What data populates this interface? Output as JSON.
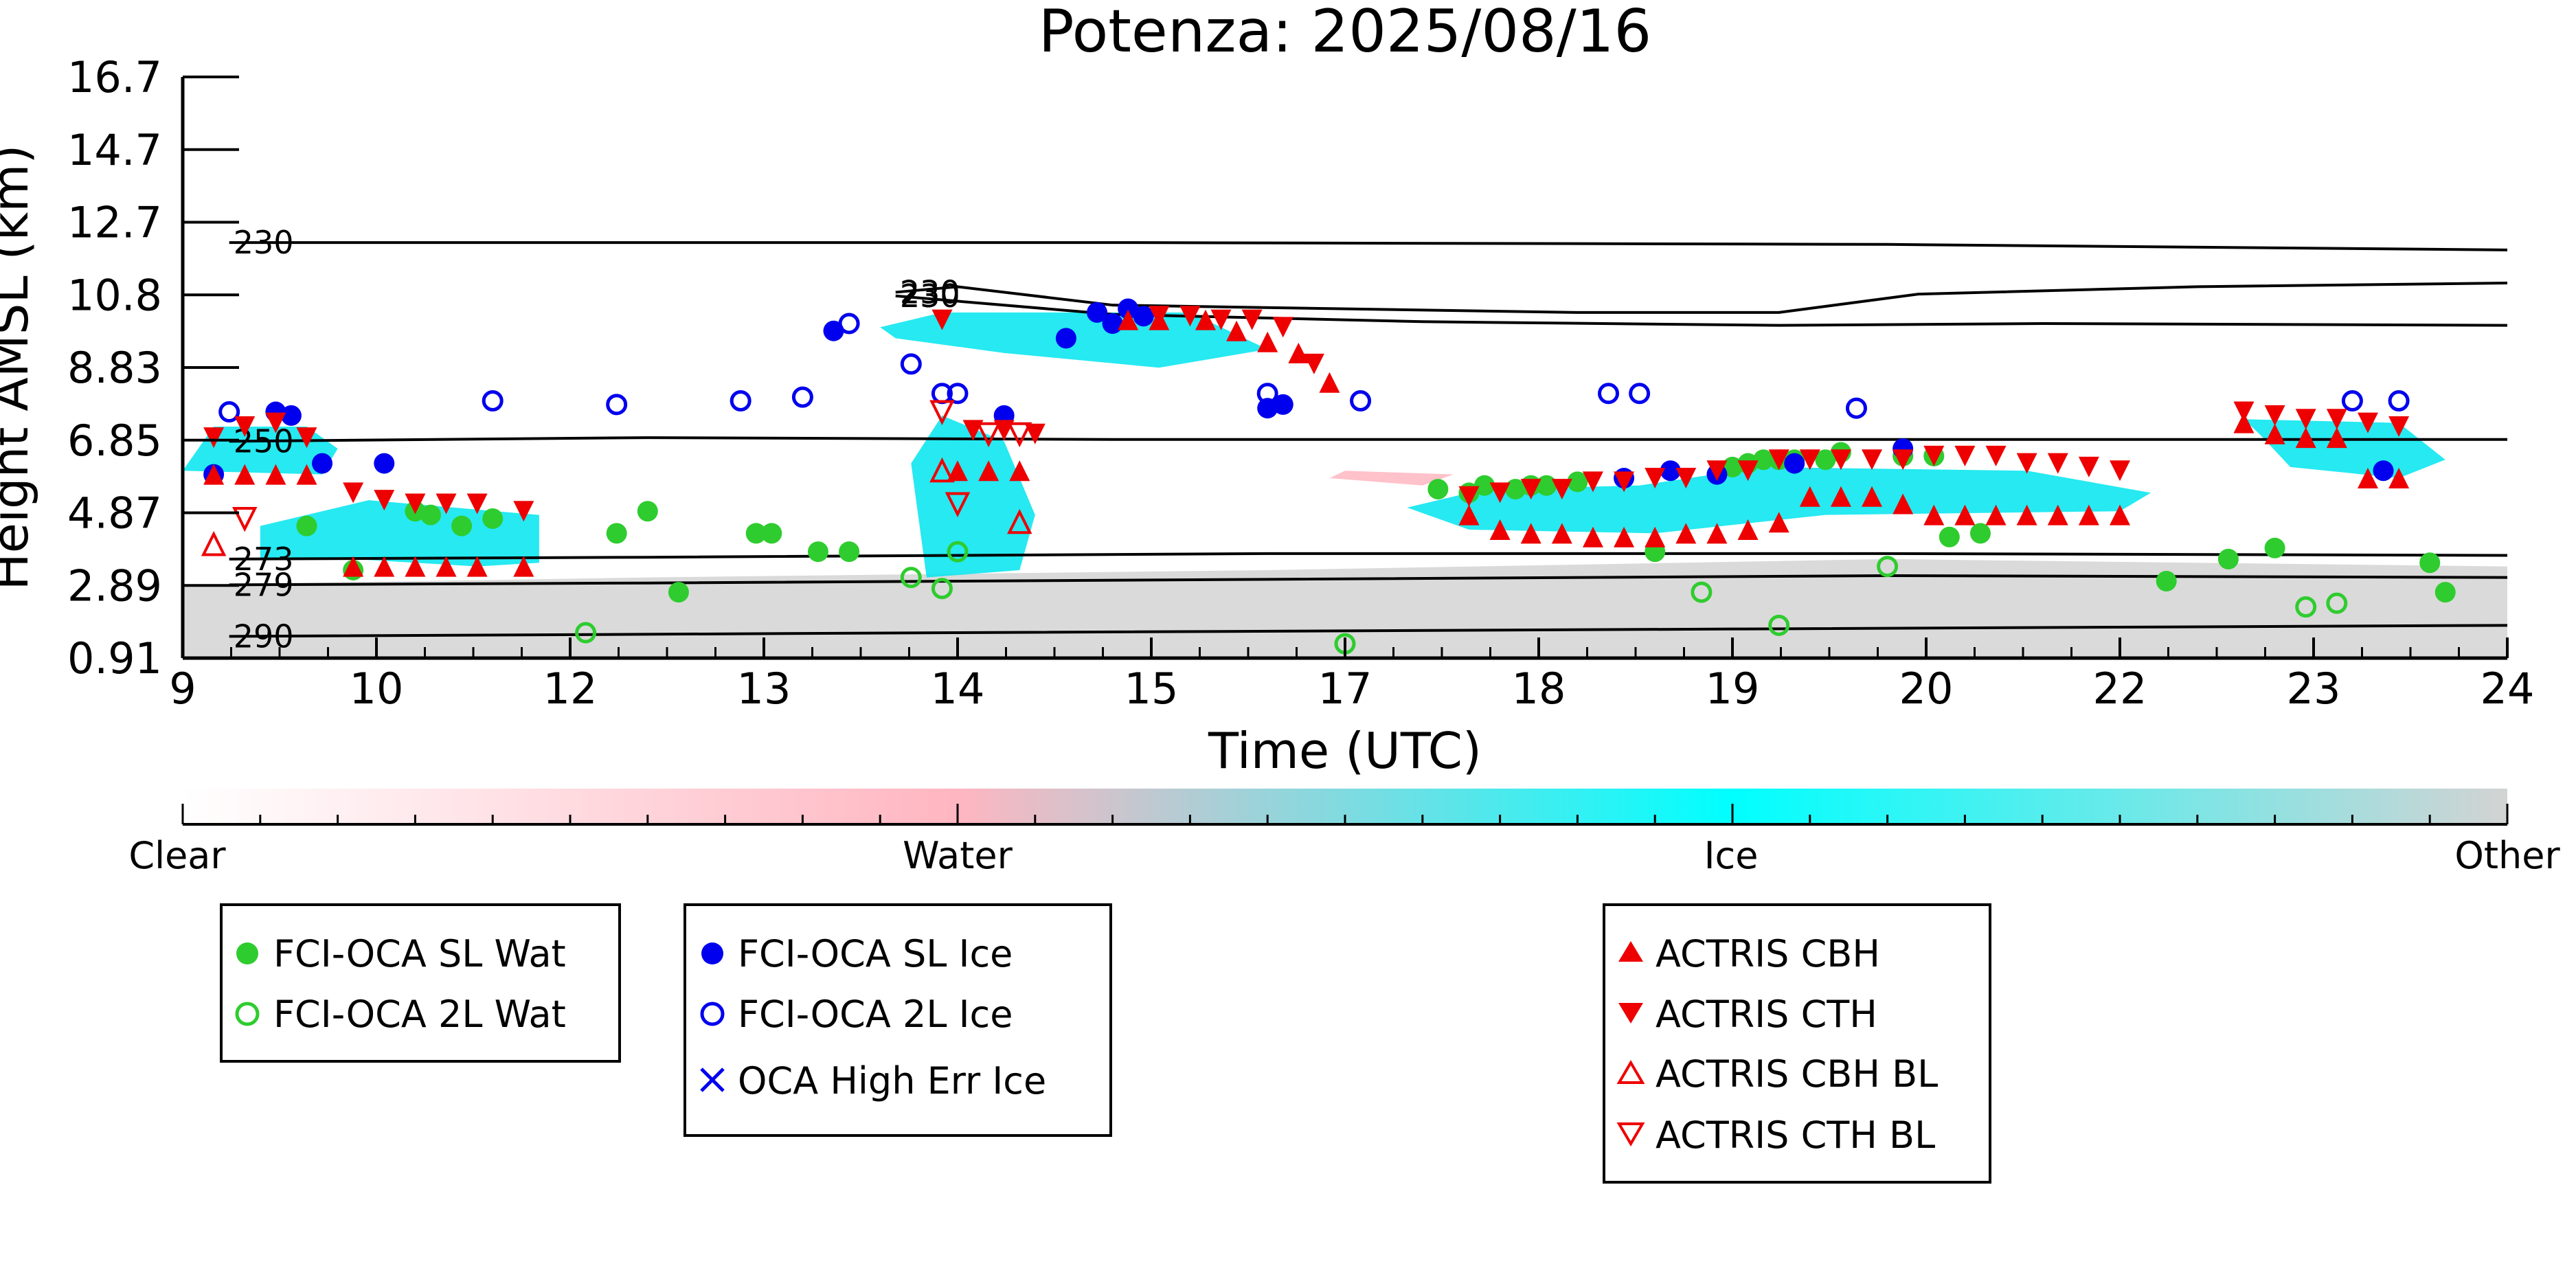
{
  "chart_data": {
    "type": "scatter",
    "title": "Potenza: 2025/08/16",
    "xlabel": "Time (UTC)",
    "ylabel": "Height AMSL (km)",
    "x_tick_labels": [
      "9",
      "10",
      "12",
      "13",
      "14",
      "15",
      "17",
      "18",
      "19",
      "20",
      "22",
      "23",
      "24"
    ],
    "y_tick_labels": [
      "16.7",
      "14.7",
      "12.7",
      "10.8",
      "8.83",
      "6.85",
      "4.87",
      "2.89",
      "0.91"
    ],
    "xlim": [
      9,
      24
    ],
    "ylim": [
      0.91,
      16.7
    ],
    "colorbar": {
      "labels": [
        "Clear",
        "Water",
        "Ice",
        "Other"
      ],
      "colors": [
        "#ffffff",
        "#ffb6c1",
        "#00ffff",
        "#d3d3d3"
      ]
    },
    "isotherms": [
      {
        "label": "230",
        "points": [
          [
            9.3,
            12.2
          ],
          [
            15,
            12.2
          ],
          [
            20,
            12.15
          ],
          [
            24,
            12.0
          ]
        ]
      },
      {
        "label": "230",
        "points": [
          [
            13.6,
            10.85
          ],
          [
            14.0,
            11.0
          ],
          [
            15,
            10.5
          ],
          [
            18,
            10.3
          ],
          [
            19.3,
            10.3
          ],
          [
            20.2,
            10.8
          ],
          [
            22,
            11.0
          ],
          [
            24,
            11.1
          ]
        ]
      },
      {
        "label": "230",
        "points": [
          [
            13.6,
            10.75
          ],
          [
            15,
            10.25
          ],
          [
            17,
            10.05
          ],
          [
            19.3,
            9.95
          ],
          [
            21,
            10.0
          ],
          [
            24,
            9.95
          ]
        ]
      },
      {
        "label": "250",
        "points": [
          [
            9.3,
            6.8
          ],
          [
            12,
            6.9
          ],
          [
            15,
            6.85
          ],
          [
            19,
            6.85
          ],
          [
            24,
            6.85
          ]
        ]
      },
      {
        "label": "273",
        "points": [
          [
            9.3,
            3.6
          ],
          [
            12,
            3.65
          ],
          [
            16,
            3.75
          ],
          [
            20,
            3.75
          ],
          [
            24,
            3.7
          ]
        ]
      },
      {
        "label": "279",
        "points": [
          [
            9.3,
            2.9
          ],
          [
            12,
            2.95
          ],
          [
            16,
            3.05
          ],
          [
            20,
            3.15
          ],
          [
            24,
            3.1
          ]
        ]
      },
      {
        "label": "290",
        "points": [
          [
            9.3,
            1.5
          ],
          [
            14,
            1.6
          ],
          [
            19,
            1.7
          ],
          [
            24,
            1.8
          ]
        ]
      }
    ],
    "series": [
      {
        "name": "FCI-OCA SL Wat",
        "color": "#2ecc2e",
        "marker": "circle-filled",
        "x": [
          9.8,
          10.1,
          10.5,
          10.6,
          10.8,
          11.0,
          11.8,
          12.0,
          12.2,
          12.7,
          12.8,
          13.1,
          13.3,
          17.1,
          17.3,
          17.4,
          17.6,
          17.7,
          17.8,
          18.0,
          18.5,
          19.0,
          19.1,
          19.2,
          19.3,
          19.4,
          19.6,
          19.7,
          20.1,
          20.3,
          20.4,
          20.6,
          21.8,
          22.2,
          22.5,
          23.5,
          23.6
        ],
        "y": [
          4.5,
          3.3,
          4.9,
          4.8,
          4.5,
          4.7,
          4.3,
          4.9,
          2.7,
          4.3,
          4.3,
          3.8,
          3.8,
          5.5,
          5.4,
          5.6,
          5.5,
          5.6,
          5.6,
          5.7,
          3.8,
          6.1,
          6.2,
          6.3,
          6.3,
          6.3,
          6.3,
          6.5,
          6.4,
          6.4,
          4.2,
          4.3,
          3.0,
          3.6,
          3.9,
          3.5,
          2.7
        ]
      },
      {
        "name": "FCI-OCA 2L Wat",
        "color": "#2ecc2e",
        "marker": "circle-open",
        "x": [
          11.6,
          13.7,
          13.9,
          14.0,
          16.5,
          18.8,
          19.3,
          20.0,
          22.7,
          22.9
        ],
        "y": [
          1.6,
          3.1,
          2.8,
          3.8,
          1.3,
          2.7,
          1.8,
          3.4,
          2.3,
          2.4
        ]
      },
      {
        "name": "FCI-OCA SL Ice",
        "color": "#0000ee",
        "marker": "circle-filled",
        "x": [
          9.2,
          9.6,
          9.7,
          9.9,
          10.3,
          13.2,
          14.3,
          14.7,
          14.9,
          15.0,
          15.1,
          15.2,
          16.0,
          16.1,
          18.3,
          18.6,
          18.9,
          19.4,
          20.1,
          23.2
        ],
        "y": [
          5.9,
          7.6,
          7.5,
          6.2,
          6.2,
          9.8,
          7.5,
          9.6,
          10.3,
          10.0,
          10.4,
          10.2,
          7.7,
          7.8,
          5.8,
          6.0,
          5.9,
          6.2,
          6.6,
          6.0
        ]
      },
      {
        "name": "FCI-OCA 2L Ice",
        "color": "#0000ee",
        "marker": "circle-open",
        "x": [
          9.3,
          11.0,
          11.8,
          12.6,
          13.0,
          13.3,
          13.7,
          13.9,
          14.0,
          16.0,
          16.6,
          18.2,
          18.4,
          19.8,
          23.0,
          23.3
        ],
        "y": [
          7.6,
          7.9,
          7.8,
          7.9,
          8.0,
          10.0,
          8.9,
          8.1,
          8.1,
          8.1,
          7.9,
          8.1,
          8.1,
          7.7,
          7.9,
          7.9
        ]
      },
      {
        "name": "OCA High Err Ice",
        "color": "#0000ee",
        "marker": "x",
        "x": [],
        "y": []
      },
      {
        "name": "ACTRIS CBH",
        "color": "#ee0000",
        "marker": "triangle-up-filled",
        "x": [
          9.2,
          9.4,
          9.6,
          9.8,
          10.1,
          10.3,
          10.5,
          10.7,
          10.9,
          11.2,
          14.0,
          14.2,
          14.4,
          15.1,
          15.3,
          15.6,
          15.8,
          16.0,
          16.2,
          16.4,
          17.3,
          17.5,
          17.7,
          17.9,
          18.1,
          18.3,
          18.5,
          18.7,
          18.9,
          19.1,
          19.3,
          19.5,
          19.7,
          19.9,
          20.1,
          20.3,
          20.5,
          20.7,
          20.9,
          21.1,
          21.3,
          21.5,
          22.3,
          22.5,
          22.7,
          22.9,
          23.1,
          23.3
        ],
        "y": [
          5.9,
          5.9,
          5.9,
          5.9,
          3.4,
          3.4,
          3.4,
          3.4,
          3.4,
          3.4,
          6.0,
          6.0,
          6.0,
          10.1,
          10.1,
          10.1,
          9.8,
          9.5,
          9.2,
          8.4,
          4.8,
          4.4,
          4.3,
          4.3,
          4.2,
          4.2,
          4.2,
          4.3,
          4.3,
          4.4,
          4.6,
          5.3,
          5.3,
          5.3,
          5.1,
          4.8,
          4.8,
          4.8,
          4.8,
          4.8,
          4.8,
          4.8,
          7.3,
          7.0,
          6.9,
          6.9,
          5.8,
          5.8
        ]
      },
      {
        "name": "ACTRIS CTH",
        "color": "#ee0000",
        "marker": "triangle-down-filled",
        "x": [
          9.2,
          9.4,
          9.6,
          9.8,
          10.1,
          10.3,
          10.5,
          10.7,
          10.9,
          11.2,
          13.9,
          14.1,
          14.3,
          14.5,
          15.3,
          15.5,
          15.7,
          15.9,
          16.1,
          16.3,
          17.3,
          17.5,
          17.7,
          17.9,
          18.1,
          18.3,
          18.5,
          18.7,
          18.9,
          19.1,
          19.3,
          19.5,
          19.7,
          19.9,
          20.1,
          20.3,
          20.5,
          20.7,
          20.9,
          21.1,
          21.3,
          21.5,
          22.3,
          22.5,
          22.7,
          22.9,
          23.1,
          23.3
        ],
        "y": [
          6.9,
          7.2,
          7.3,
          6.9,
          5.4,
          5.2,
          5.1,
          5.1,
          5.1,
          4.9,
          10.1,
          7.1,
          7.1,
          7.0,
          10.2,
          10.2,
          10.1,
          10.1,
          9.9,
          8.9,
          5.3,
          5.4,
          5.5,
          5.5,
          5.7,
          5.7,
          5.8,
          5.8,
          6.0,
          6.0,
          6.3,
          6.3,
          6.3,
          6.3,
          6.3,
          6.4,
          6.4,
          6.4,
          6.2,
          6.2,
          6.1,
          6.0,
          7.6,
          7.5,
          7.4,
          7.4,
          7.3,
          7.2
        ]
      },
      {
        "name": "ACTRIS CBH BL",
        "color": "#ee0000",
        "marker": "triangle-up-open",
        "x": [
          9.2,
          13.9,
          14.4
        ],
        "y": [
          4.0,
          6.0,
          4.6
        ]
      },
      {
        "name": "ACTRIS CTH BL",
        "color": "#ee0000",
        "marker": "triangle-down-open",
        "x": [
          9.4,
          13.9,
          14.0,
          14.2,
          14.4
        ],
        "y": [
          4.7,
          7.6,
          5.1,
          7.0,
          7.0
        ]
      }
    ],
    "legend_groups": [
      [
        "FCI-OCA SL Wat",
        "FCI-OCA 2L Wat"
      ],
      [
        "FCI-OCA SL Ice",
        "FCI-OCA 2L Ice",
        "OCA High Err Ice"
      ],
      [
        "ACTRIS CBH",
        "ACTRIS CTH",
        "ACTRIS CBH BL",
        "ACTRIS CTH BL"
      ]
    ],
    "legend_placement": "below-chart",
    "grid": false
  }
}
